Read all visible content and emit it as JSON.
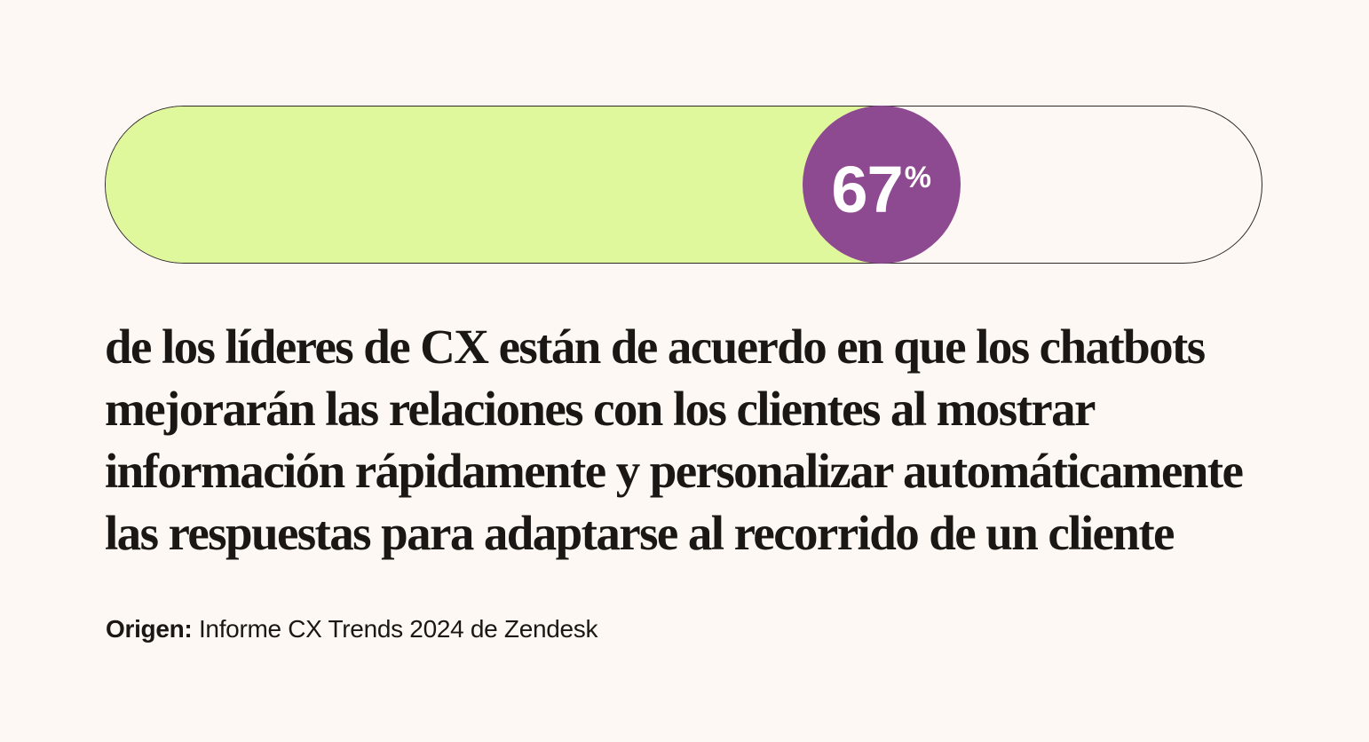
{
  "colors": {
    "background": "#FDF8F3",
    "fill": "#E0F89C",
    "badge": "#8E4A91",
    "track_border": "#2E2A26",
    "text": "#1A1714"
  },
  "stat": {
    "value": "67",
    "unit": "%"
  },
  "headline": {
    "lines": [
      "de los líderes de CX están de acuerdo en que los chatbots",
      "mejorarán las relaciones con los clientes al mostrar",
      "información rápidamente y personalizar automáticamente",
      "las respuestas para adaptarse al recorrido de un cliente"
    ]
  },
  "source": {
    "label": "Origen:",
    "text": " Informe CX Trends 2024 de Zendesk"
  },
  "chart_data": {
    "type": "bar",
    "orientation": "horizontal",
    "categories": [
      "Líderes de CX que están de acuerdo"
    ],
    "values": [
      67
    ],
    "unit": "%",
    "ylim": [
      0,
      100
    ],
    "title": "67% de los líderes de CX están de acuerdo en que los chatbots mejorarán las relaciones con los clientes al mostrar información rápidamente y personalizar automáticamente las respuestas para adaptarse al recorrido de un cliente",
    "data_label": "67%",
    "source": "Origen: Informe CX Trends 2024 de Zendesk",
    "grid": false,
    "legend": "none"
  }
}
